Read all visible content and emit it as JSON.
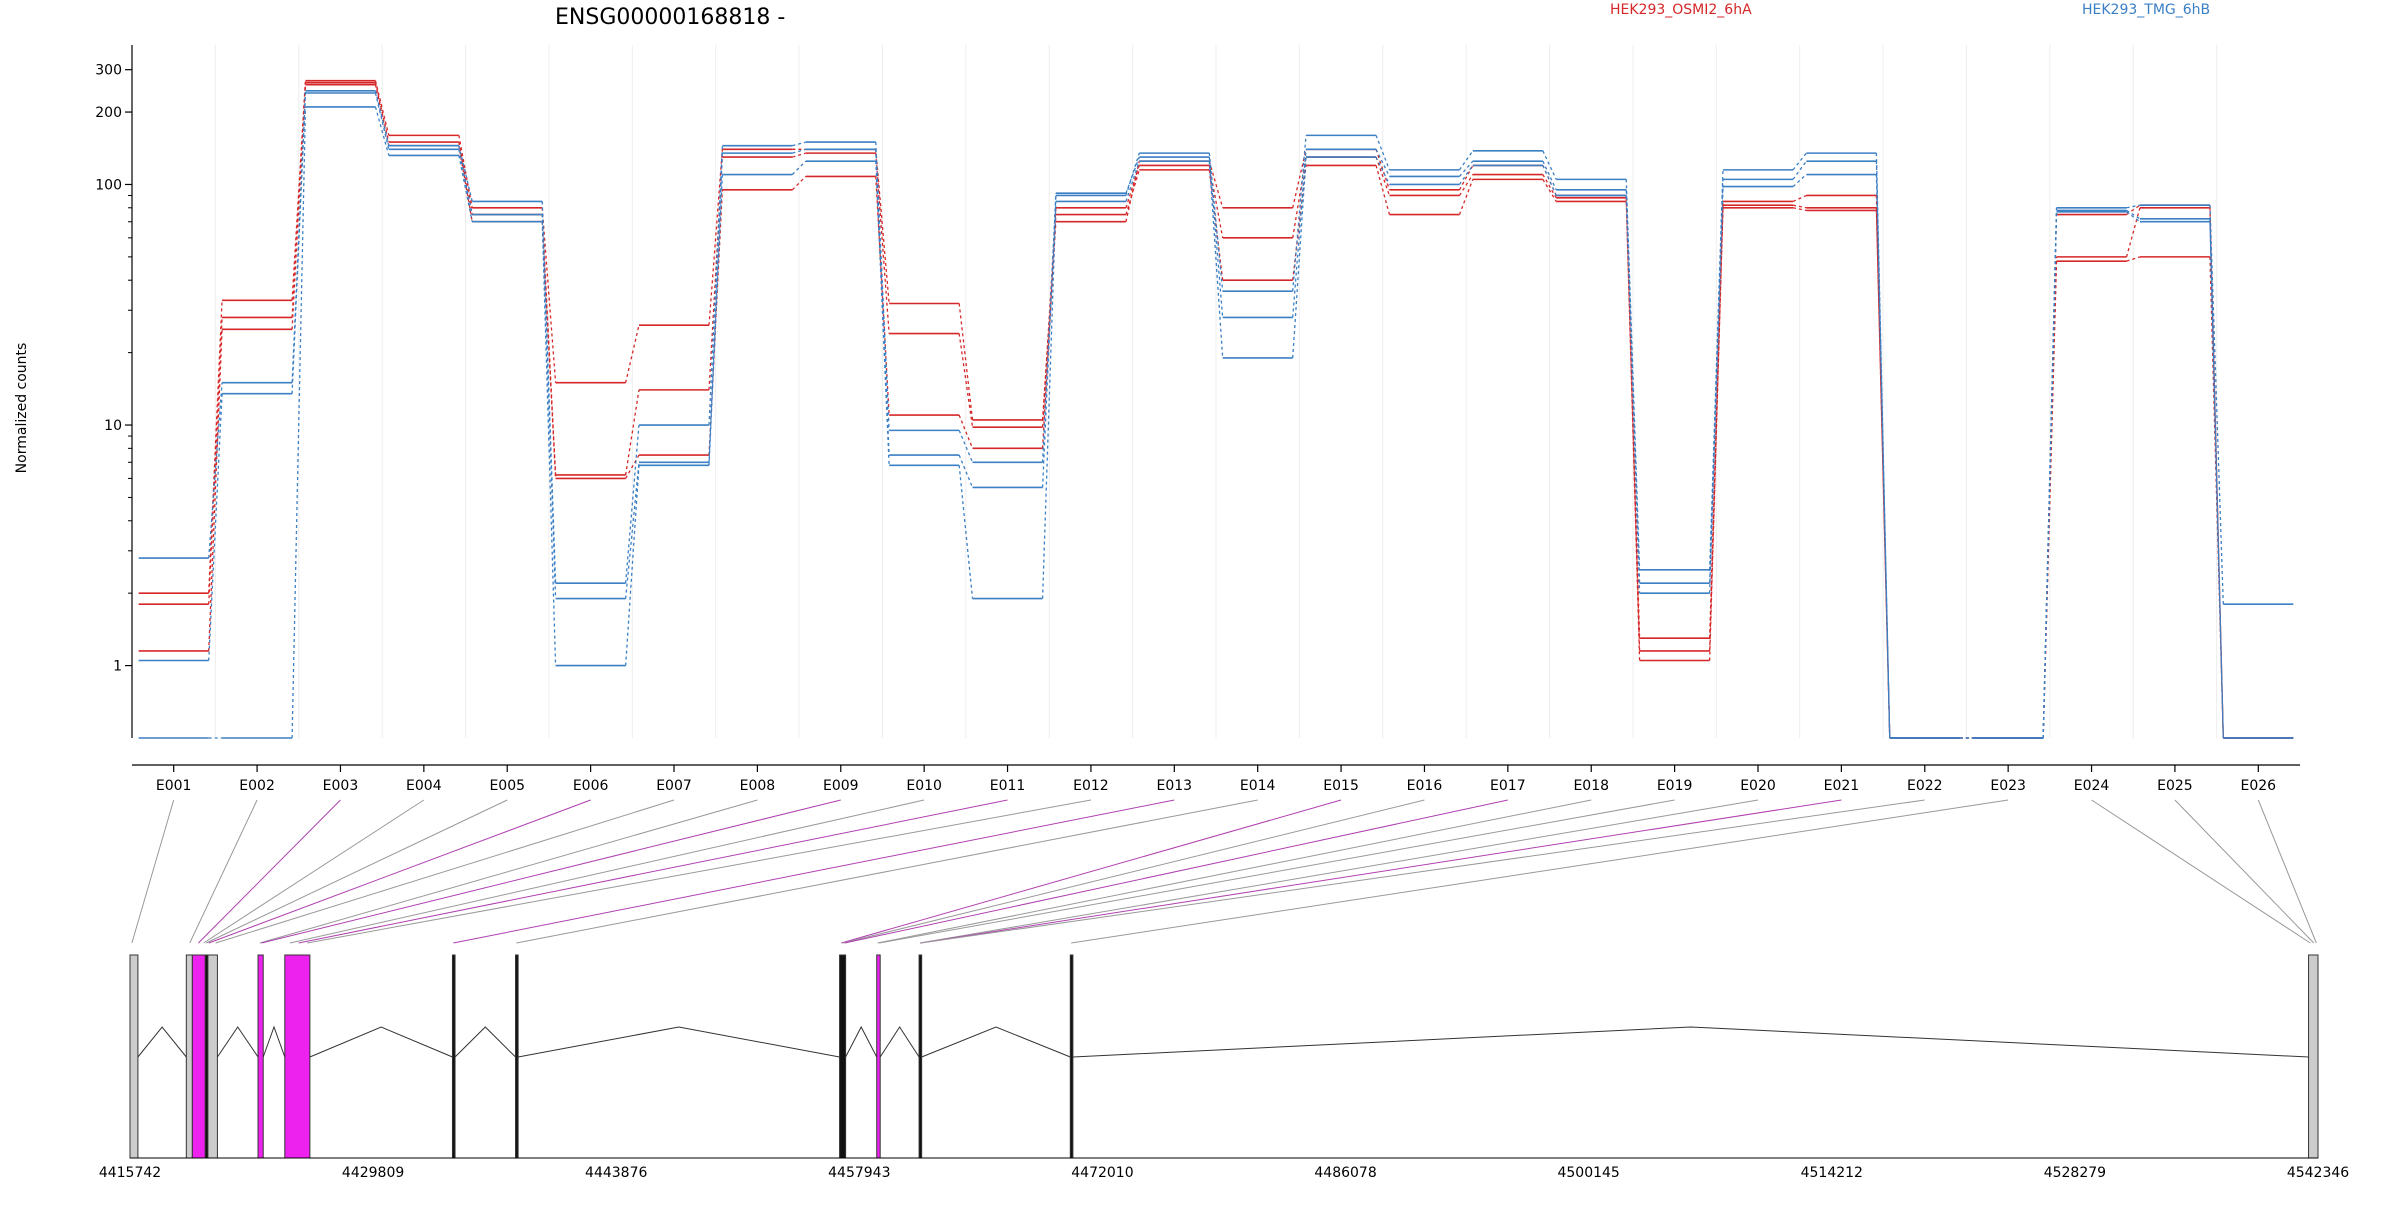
{
  "chart_data": {
    "type": "line",
    "title": "ENSG00000168818 -",
    "ylabel": "Normalized counts",
    "yscale": "log",
    "y_ticks": [
      1,
      10,
      100,
      200,
      300
    ],
    "y_tick_labels": [
      "1",
      "10",
      "100",
      "200",
      "300"
    ],
    "ylim": [
      0.5,
      380
    ],
    "categories": [
      "E001",
      "E002",
      "E003",
      "E004",
      "E005",
      "E006",
      "E007",
      "E008",
      "E009",
      "E010",
      "E011",
      "E012",
      "E013",
      "E014",
      "E015",
      "E016",
      "E017",
      "E018",
      "E019",
      "E020",
      "E021",
      "E022",
      "E023",
      "E024",
      "E025",
      "E026"
    ],
    "legend": [
      {
        "name": "HEK293_OSMI2_6hA",
        "color": "#d62728",
        "placement": "top-center"
      },
      {
        "name": "HEK293_TMG_6hB",
        "color": "#3b7fc4",
        "placement": "top-right"
      }
    ],
    "series": [
      {
        "group": "HEK293_OSMI2_6hA",
        "color": "#d62728",
        "values": [
          2.0,
          33,
          270,
          160,
          80,
          15,
          26,
          140,
          140,
          32,
          10.5,
          70,
          125,
          80,
          140,
          95,
          120,
          90,
          1.3,
          85,
          90,
          0.5,
          0.5,
          75,
          82,
          0.5
        ]
      },
      {
        "group": "HEK293_OSMI2_6hA",
        "color": "#d62728",
        "values": [
          1.8,
          28,
          265,
          150,
          75,
          6.2,
          14,
          130,
          135,
          24,
          9.8,
          80,
          120,
          60,
          130,
          90,
          110,
          88,
          1.15,
          82,
          80,
          0.5,
          0.5,
          50,
          80,
          0.5
        ]
      },
      {
        "group": "HEK293_OSMI2_6hA",
        "color": "#d62728",
        "values": [
          1.15,
          25,
          260,
          145,
          70,
          6.0,
          7.5,
          95,
          108,
          11,
          8.0,
          75,
          115,
          40,
          120,
          75,
          105,
          85,
          1.05,
          80,
          78,
          0.5,
          0.5,
          48,
          50,
          0.5
        ]
      },
      {
        "group": "HEK293_TMG_6hB",
        "color": "#3b7fc4",
        "values": [
          2.8,
          15,
          245,
          145,
          85,
          2.2,
          10,
          145,
          150,
          9.5,
          7.0,
          90,
          135,
          36,
          160,
          115,
          138,
          105,
          2.5,
          115,
          135,
          0.5,
          0.5,
          80,
          82,
          1.8
        ]
      },
      {
        "group": "HEK293_TMG_6hB",
        "color": "#3b7fc4",
        "values": [
          1.05,
          13.5,
          240,
          140,
          75,
          1.9,
          7.0,
          135,
          140,
          7.5,
          5.5,
          92,
          130,
          28,
          140,
          108,
          125,
          95,
          2.2,
          105,
          125,
          0.5,
          0.5,
          78,
          72,
          0.5
        ]
      },
      {
        "group": "HEK293_TMG_6hB",
        "color": "#3b7fc4",
        "values": [
          0.5,
          0.5,
          210,
          132,
          70,
          1.0,
          6.8,
          110,
          125,
          6.8,
          1.9,
          85,
          125,
          19,
          130,
          100,
          120,
          90,
          2.0,
          98,
          110,
          0.5,
          0.5,
          77,
          70,
          0.5
        ]
      }
    ],
    "coordinate_axis": {
      "min": 4415742,
      "max": 4542346,
      "ticks": [
        4415742,
        4429809,
        4443876,
        4457943,
        4472010,
        4486078,
        4500145,
        4514212,
        4528279,
        4542346
      ],
      "tick_labels": [
        "4415742",
        "4429809",
        "4443876",
        "4457943",
        "4472010",
        "4486078",
        "4500145",
        "4514212",
        "4528279",
        "4542346"
      ]
    },
    "gene_model": {
      "exons": [
        {
          "start": 4415742,
          "end": 4416200,
          "color": "#cccccc"
        },
        {
          "start": 4419000,
          "end": 4419350,
          "color": "#cccccc"
        },
        {
          "start": 4419350,
          "end": 4420100,
          "color": "#ee22ee"
        },
        {
          "start": 4420100,
          "end": 4420250,
          "color": "#111111"
        },
        {
          "start": 4420250,
          "end": 4420800,
          "color": "#cccccc"
        },
        {
          "start": 4423150,
          "end": 4423450,
          "color": "#ee22ee"
        },
        {
          "start": 4424700,
          "end": 4426150,
          "color": "#ee22ee"
        },
        {
          "start": 4434400,
          "end": 4434550,
          "color": "#111111"
        },
        {
          "start": 4438050,
          "end": 4438200,
          "color": "#111111"
        },
        {
          "start": 4456800,
          "end": 4457150,
          "color": "#111111"
        },
        {
          "start": 4458950,
          "end": 4459150,
          "color": "#ee22ee"
        },
        {
          "start": 4461400,
          "end": 4461550,
          "color": "#111111"
        },
        {
          "start": 4470150,
          "end": 4470300,
          "color": "#111111"
        },
        {
          "start": 4541800,
          "end": 4542346,
          "color": "#cccccc"
        }
      ],
      "introns": [
        {
          "start": 4416200,
          "end": 4419000
        },
        {
          "start": 4420800,
          "end": 4423150
        },
        {
          "start": 4423450,
          "end": 4424700
        },
        {
          "start": 4426150,
          "end": 4434400
        },
        {
          "start": 4434550,
          "end": 4438050
        },
        {
          "start": 4438200,
          "end": 4456800
        },
        {
          "start": 4457150,
          "end": 4458950
        },
        {
          "start": 4459150,
          "end": 4461400
        },
        {
          "start": 4461550,
          "end": 4470150
        },
        {
          "start": 4470300,
          "end": 4541800
        }
      ],
      "exon_bin_links": [
        4415850,
        4419200,
        4419700,
        4420000,
        4420150,
        4420300,
        4420700,
        4423250,
        4423350,
        4425000,
        4425500,
        4426000,
        4434450,
        4438100,
        4456900,
        4457000,
        4457100,
        4459000,
        4459100,
        4461450,
        4461480,
        4461500,
        4470200,
        4541900,
        4542100,
        4542250
      ],
      "highlighted_links": [
        2,
        5,
        8,
        10,
        12,
        14,
        16,
        20
      ]
    }
  }
}
